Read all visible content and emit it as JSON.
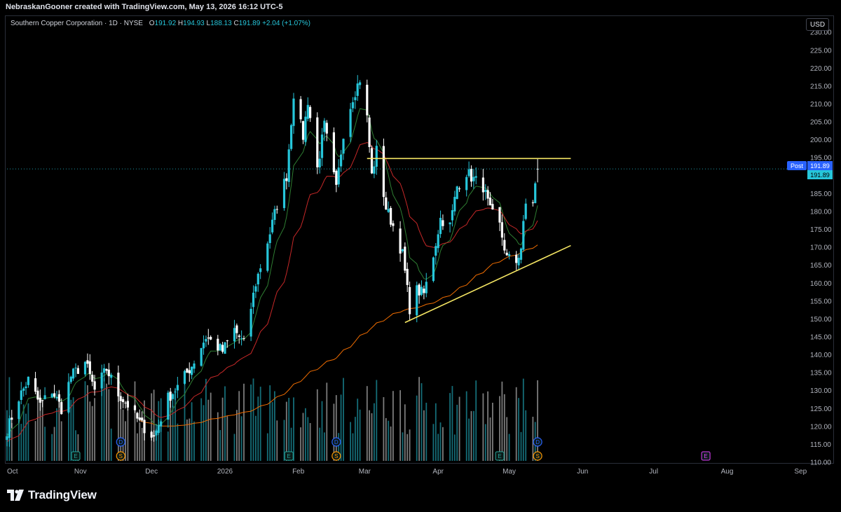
{
  "header": {
    "credit": "NebraskanGooner created with TradingView.com, May 13, 2026 16:12 UTC-5"
  },
  "legend": {
    "title": "Southern Copper Corporation · 1D · NYSE",
    "o_label": "O",
    "o": "191.92",
    "h_label": "H",
    "h": "194.93",
    "l_label": "L",
    "l": "188.13",
    "c_label": "C",
    "c": "191.89",
    "chg": "+2.04 (+1.07%)"
  },
  "currency_button": "USD",
  "price_tags": {
    "post_label": "Post",
    "post_value": "191.89",
    "last_value": "191.89"
  },
  "brand": {
    "name": "TradingView"
  },
  "colors": {
    "bull": "#26c6da",
    "bear": "#ffffff",
    "ema_short": "#2e7d32",
    "ema_mid": "#c62828",
    "sma_long": "#ef6c00",
    "trendline": "#f5e663",
    "axis_text": "#b2b5be",
    "event_e": "#26a69a",
    "event_d": "#2962ff",
    "event_s": "#ff9800",
    "event_e_future": "#e040fb"
  },
  "chart_data": {
    "type": "candlestick",
    "title": "",
    "grid": false,
    "y_axis": {
      "range": [
        110,
        232
      ],
      "position": "right",
      "ticks": [
        "110.00",
        "115.00",
        "120.00",
        "125.00",
        "130.00",
        "135.00",
        "140.00",
        "145.00",
        "150.00",
        "155.00",
        "160.00",
        "165.00",
        "170.00",
        "175.00",
        "180.00",
        "185.00",
        "190.00",
        "195.00",
        "200.00",
        "205.00",
        "210.00",
        "215.00",
        "220.00",
        "225.00",
        "230.00"
      ]
    },
    "x_axis": {
      "labels": [
        "Oct",
        "Nov",
        "Dec",
        "2026",
        "Feb",
        "Mar",
        "Apr",
        "May",
        "Jun",
        "Jul",
        "Aug",
        "Sep"
      ]
    },
    "anchors": [
      [
        "2025-10-01",
        119
      ],
      [
        "2025-10-06",
        128
      ],
      [
        "2025-10-10",
        133
      ],
      [
        "2025-10-15",
        126
      ],
      [
        "2025-10-20",
        130
      ],
      [
        "2025-10-24",
        125
      ],
      [
        "2025-10-28",
        134
      ],
      [
        "2025-11-03",
        138
      ],
      [
        "2025-11-07",
        130
      ],
      [
        "2025-11-12",
        136
      ],
      [
        "2025-11-17",
        129
      ],
      [
        "2025-11-21",
        126
      ],
      [
        "2025-11-26",
        121
      ],
      [
        "2025-12-02",
        117
      ],
      [
        "2025-12-08",
        128
      ],
      [
        "2025-12-12",
        131
      ],
      [
        "2025-12-18",
        137
      ],
      [
        "2025-12-24",
        145
      ],
      [
        "2025-12-31",
        141
      ],
      [
        "2026-01-05",
        147
      ],
      [
        "2026-01-09",
        143
      ],
      [
        "2026-01-14",
        160
      ],
      [
        "2026-01-20",
        174
      ],
      [
        "2026-01-23",
        182
      ],
      [
        "2026-01-27",
        190
      ],
      [
        "2026-01-30",
        213
      ],
      [
        "2026-02-03",
        201
      ],
      [
        "2026-02-05",
        211
      ],
      [
        "2026-02-09",
        192
      ],
      [
        "2026-02-12",
        204
      ],
      [
        "2026-02-17",
        186
      ],
      [
        "2026-02-20",
        202
      ],
      [
        "2026-02-24",
        212
      ],
      [
        "2026-02-27",
        217
      ],
      [
        "2026-03-02",
        206
      ],
      [
        "2026-03-04",
        190
      ],
      [
        "2026-03-06",
        197
      ],
      [
        "2026-03-10",
        181
      ],
      [
        "2026-03-13",
        176
      ],
      [
        "2026-03-17",
        168
      ],
      [
        "2026-03-20",
        153
      ],
      [
        "2026-03-23",
        158
      ],
      [
        "2026-03-26",
        157
      ],
      [
        "2026-03-30",
        168
      ],
      [
        "2026-04-02",
        178
      ],
      [
        "2026-04-06",
        176
      ],
      [
        "2026-04-09",
        187
      ],
      [
        "2026-04-13",
        191
      ],
      [
        "2026-04-16",
        189
      ],
      [
        "2026-04-20",
        187
      ],
      [
        "2026-04-23",
        180
      ],
      [
        "2026-04-27",
        176
      ],
      [
        "2026-04-30",
        167
      ],
      [
        "2026-05-04",
        166
      ],
      [
        "2026-05-06",
        170
      ],
      [
        "2026-05-08",
        182
      ],
      [
        "2026-05-11",
        183
      ],
      [
        "2026-05-13",
        191.89
      ]
    ],
    "last_bar": {
      "date": "2026-05-13",
      "open": 191.92,
      "high": 194.93,
      "low": 188.13,
      "close": 191.89
    },
    "indicators": [
      {
        "kind": "ema_short",
        "period": 8
      },
      {
        "kind": "ema_mid",
        "period": 21
      },
      {
        "kind": "sma_long",
        "period": 100
      }
    ],
    "trendlines": [
      {
        "kind": "resistance",
        "from": [
          "2026-03-02",
          194.8
        ],
        "to": [
          "2026-05-27",
          194.8
        ]
      },
      {
        "kind": "support",
        "from": [
          "2026-03-18",
          149
        ],
        "to": [
          "2026-05-27",
          170.5
        ]
      }
    ],
    "events": [
      {
        "date": "2025-10-30",
        "type": "E"
      },
      {
        "date": "2025-11-18",
        "type": "D"
      },
      {
        "date": "2025-11-18",
        "type": "S"
      },
      {
        "date": "2026-01-28",
        "type": "E"
      },
      {
        "date": "2026-02-17",
        "type": "D"
      },
      {
        "date": "2026-02-17",
        "type": "S"
      },
      {
        "date": "2026-04-27",
        "type": "E"
      },
      {
        "date": "2026-05-13",
        "type": "D"
      },
      {
        "date": "2026-05-13",
        "type": "S"
      },
      {
        "date": "2026-07-23",
        "type": "E",
        "future": true
      }
    ]
  }
}
